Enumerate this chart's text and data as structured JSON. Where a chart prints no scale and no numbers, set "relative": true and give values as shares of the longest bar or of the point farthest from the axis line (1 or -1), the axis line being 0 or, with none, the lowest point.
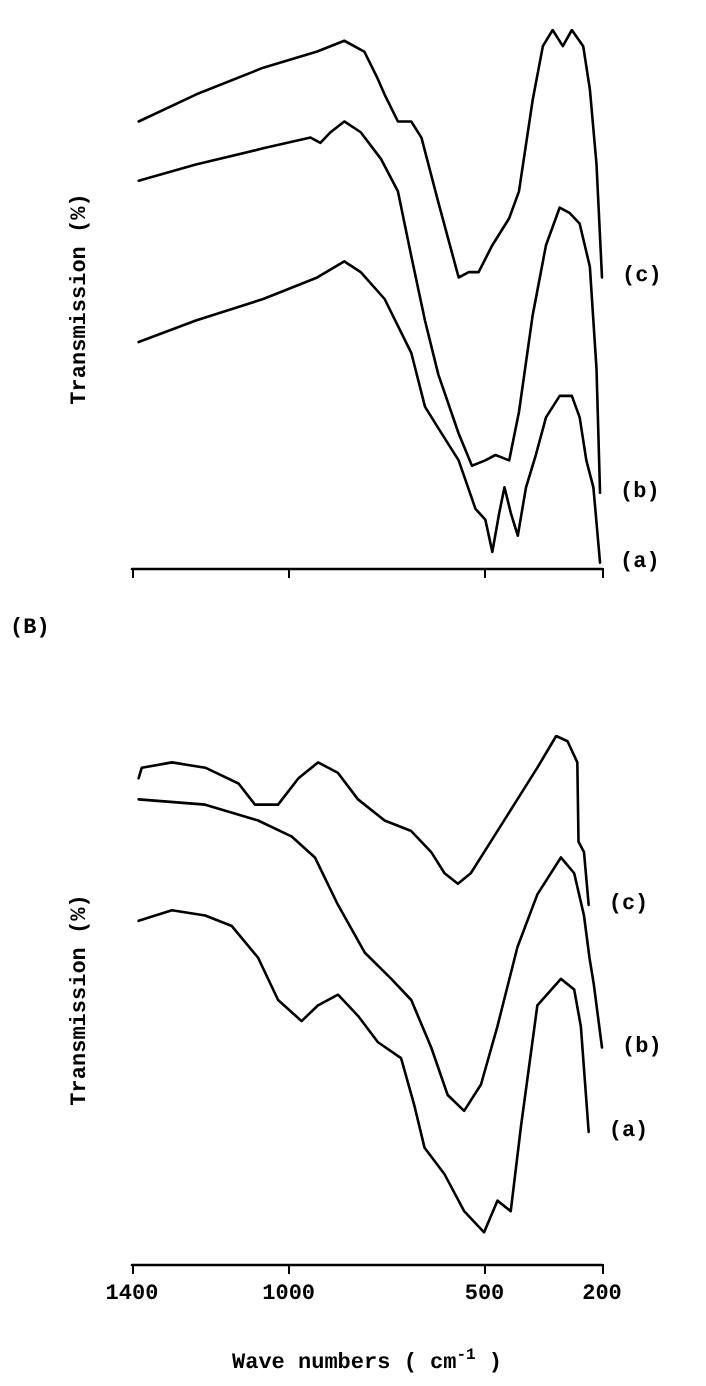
{
  "chart_data": [
    {
      "type": "line",
      "ylabel": "Transmission (%)",
      "relative": true,
      "xlim": [
        1400,
        200
      ],
      "xticks": [
        {
          "value": 1400,
          "label": null
        },
        {
          "value": 1000,
          "label": null
        },
        {
          "value": 500,
          "label": null
        },
        {
          "value": 200,
          "label": null
        }
      ],
      "tick_labels": false,
      "marker": "none",
      "line_style": "solid",
      "legend": false,
      "series": [
        {
          "name": "(c)",
          "color": "#000000",
          "x": [
            1383,
            1237,
            1065,
            927,
            858,
            807,
            773,
            755,
            721,
            687,
            661,
            618,
            566,
            540,
            515,
            480,
            437,
            412,
            377,
            351,
            326,
            300,
            277,
            248,
            231,
            214,
            200
          ],
          "values": [
            0.83,
            0.88,
            0.93,
            0.96,
            0.98,
            0.96,
            0.91,
            0.88,
            0.83,
            0.83,
            0.8,
            0.68,
            0.54,
            0.55,
            0.55,
            0.6,
            0.65,
            0.7,
            0.87,
            0.97,
            1.0,
            0.97,
            1.0,
            0.97,
            0.89,
            0.75,
            0.54
          ]
        },
        {
          "name": "(b)",
          "color": "#000000",
          "x": [
            1383,
            1237,
            1065,
            944,
            919,
            893,
            858,
            816,
            764,
            721,
            687,
            652,
            618,
            566,
            532,
            498,
            472,
            437,
            412,
            377,
            343,
            308,
            283,
            257,
            231,
            214,
            205
          ],
          "values": [
            0.72,
            0.75,
            0.78,
            0.8,
            0.79,
            0.81,
            0.83,
            0.81,
            0.76,
            0.7,
            0.58,
            0.46,
            0.36,
            0.25,
            0.19,
            0.2,
            0.21,
            0.2,
            0.29,
            0.47,
            0.6,
            0.67,
            0.66,
            0.64,
            0.56,
            0.37,
            0.14
          ]
        },
        {
          "name": "(a)",
          "color": "#000000",
          "x": [
            1383,
            1237,
            1065,
            927,
            858,
            816,
            755,
            687,
            652,
            618,
            566,
            523,
            498,
            480,
            463,
            449,
            432,
            415,
            394,
            369,
            343,
            308,
            277,
            257,
            240,
            222,
            205
          ],
          "values": [
            0.42,
            0.46,
            0.5,
            0.54,
            0.57,
            0.55,
            0.5,
            0.4,
            0.3,
            0.26,
            0.2,
            0.11,
            0.09,
            0.03,
            0.1,
            0.15,
            0.1,
            0.06,
            0.15,
            0.21,
            0.28,
            0.32,
            0.32,
            0.28,
            0.2,
            0.15,
            0.01
          ]
        }
      ]
    },
    {
      "type": "line",
      "title": "(B)",
      "xlabel": "Wave numbers ( cm$^{-1}$ )",
      "ylabel": "Transmission (%)",
      "relative": true,
      "xlim": [
        1400,
        200
      ],
      "xticks": [
        1400,
        1000,
        500,
        200
      ],
      "tick_labels": "x",
      "marker": "none",
      "line_style": "solid",
      "legend": false,
      "series": [
        {
          "name": "(c)",
          "color": "#000000",
          "x": [
            1383,
            1375,
            1298,
            1213,
            1128,
            1086,
            1027,
            975,
            925,
            874,
            823,
            755,
            687,
            636,
            602,
            568,
            535,
            484,
            416,
            365,
            317,
            288,
            263,
            260,
            246,
            234
          ],
          "values": [
            0.92,
            0.94,
            0.95,
            0.94,
            0.91,
            0.87,
            0.87,
            0.92,
            0.95,
            0.93,
            0.88,
            0.84,
            0.82,
            0.78,
            0.74,
            0.72,
            0.74,
            0.8,
            0.88,
            0.94,
            1.0,
            0.99,
            0.95,
            0.8,
            0.78,
            0.68
          ]
        },
        {
          "name": "(b)",
          "color": "#000000",
          "x": [
            1383,
            1213,
            1078,
            993,
            933,
            874,
            806,
            738,
            687,
            636,
            594,
            552,
            509,
            467,
            416,
            365,
            305,
            271,
            246,
            232,
            221,
            200
          ],
          "values": [
            0.88,
            0.87,
            0.84,
            0.81,
            0.77,
            0.68,
            0.59,
            0.54,
            0.5,
            0.41,
            0.32,
            0.29,
            0.34,
            0.45,
            0.6,
            0.7,
            0.77,
            0.74,
            0.66,
            0.58,
            0.53,
            0.41
          ]
        },
        {
          "name": "(a)",
          "color": "#000000",
          "x": [
            1383,
            1298,
            1213,
            1145,
            1078,
            1027,
            967,
            925,
            874,
            823,
            772,
            713,
            679,
            653,
            602,
            552,
            501,
            467,
            433,
            407,
            365,
            305,
            271,
            254,
            234
          ],
          "values": [
            0.65,
            0.67,
            0.66,
            0.64,
            0.58,
            0.5,
            0.46,
            0.49,
            0.51,
            0.47,
            0.42,
            0.39,
            0.3,
            0.22,
            0.17,
            0.1,
            0.06,
            0.12,
            0.1,
            0.26,
            0.49,
            0.54,
            0.52,
            0.45,
            0.25
          ]
        }
      ]
    }
  ]
}
